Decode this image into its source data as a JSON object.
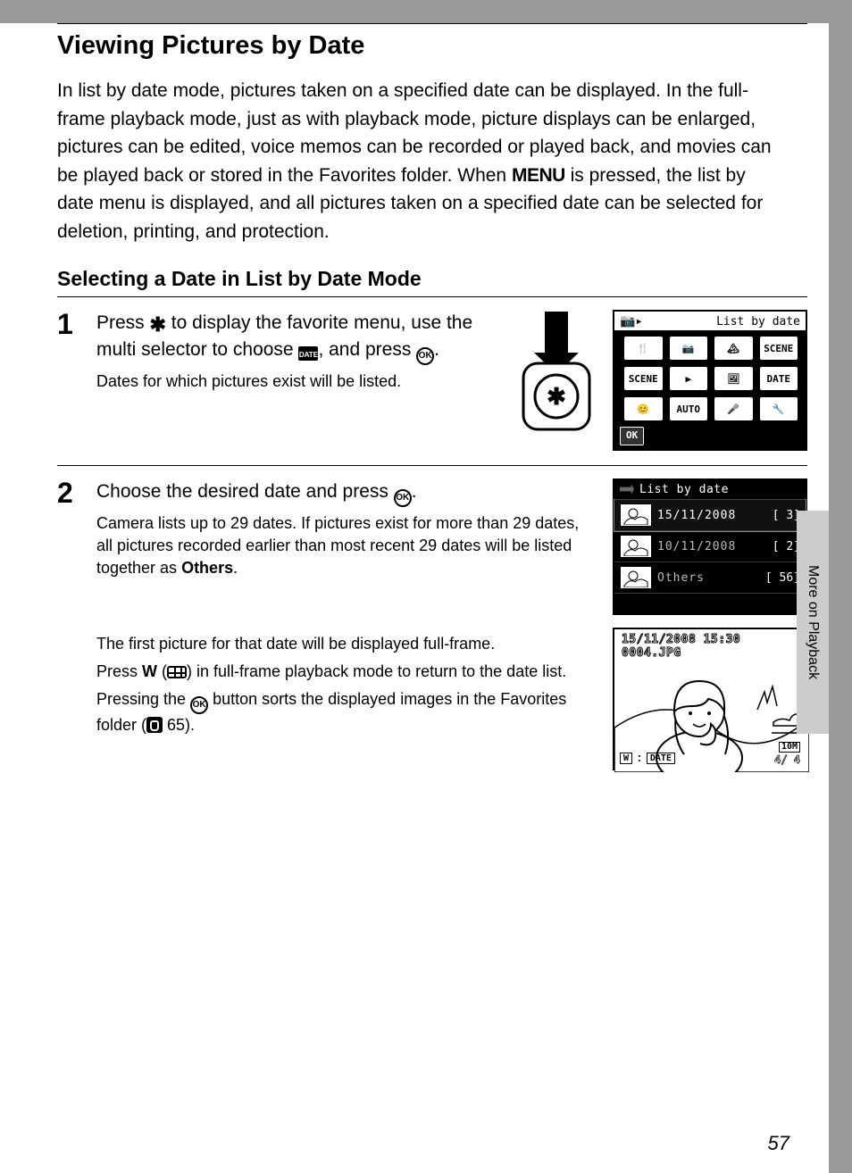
{
  "title": "Viewing Pictures by Date",
  "intro_prefix": "In list by date mode, pictures taken on a specified date can be displayed. In the full-frame playback mode, just as with playback mode, picture displays can be enlarged, pictures can be edited, voice memos can be recorded or played back, and movies can be played back or stored in the Favorites folder. When ",
  "menu_word": "MENU",
  "intro_suffix": " is pressed, the list by date menu is displayed, and all pictures taken on a specified date can be selected for deletion, printing, and protection.",
  "subhead": "Selecting a Date in List by Date Mode",
  "step1": {
    "num": "1",
    "main_a": "Press ",
    "main_b": " to display the favorite menu, use the multi selector to choose ",
    "main_c": ", and press ",
    "main_d": ".",
    "sub": "Dates for which pictures exist will be listed.",
    "ok_label": "OK",
    "date_badge": "DATE"
  },
  "step2": {
    "num": "2",
    "main_a": "Choose the desired date and press ",
    "main_b": ".",
    "sub_a": "Camera lists up to 29 dates. If pictures exist for more than 29 dates, all pictures recorded earlier than most recent 29 dates will be listed together as ",
    "sub_a_bold": "Others",
    "sub_a_end": ".",
    "block_b": "The first picture for that date will be displayed full-frame.",
    "block_c_a": "Press ",
    "block_c_w": "W",
    "block_c_b": " (",
    "block_c_c": ") in full-frame playback mode to return to the date list.",
    "block_d_a": "Pressing the ",
    "block_d_b": " button sorts the displayed images in the Favorites folder (",
    "block_d_ref": " 65).",
    "ok_label": "OK"
  },
  "fig_menu": {
    "title": "List by date",
    "ok": "OK",
    "cells": [
      "🍴",
      "📷",
      "🏔",
      "SCENE",
      "SCENE",
      "▶",
      "🖼",
      "DATE",
      "😊",
      "AUTO",
      "🎤",
      "🔧"
    ],
    "selected_index": 7
  },
  "fig_list": {
    "title": "List by date",
    "rows": [
      {
        "date": "15/11/2008",
        "count": "3",
        "sel": true
      },
      {
        "date": "10/11/2008",
        "count": "2",
        "sel": false
      },
      {
        "date": "Others",
        "count": "56",
        "sel": false
      }
    ]
  },
  "fig_preview": {
    "stamp_line1": "15/11/2008 15:30",
    "stamp_line2": "0004.JPG",
    "bl_w": "W",
    "bl_tag": "DATE",
    "br_res": "10M",
    "br_counter": "4/     4"
  },
  "side_tab": "More on Playback",
  "page_number": "57",
  "colors": {
    "page_bg": "#ffffff",
    "outer_bg": "#999999",
    "text": "#000000",
    "lcd_bg": "#000000",
    "lcd_fg": "#ffffff",
    "sidetab_bg": "#cccccc"
  }
}
